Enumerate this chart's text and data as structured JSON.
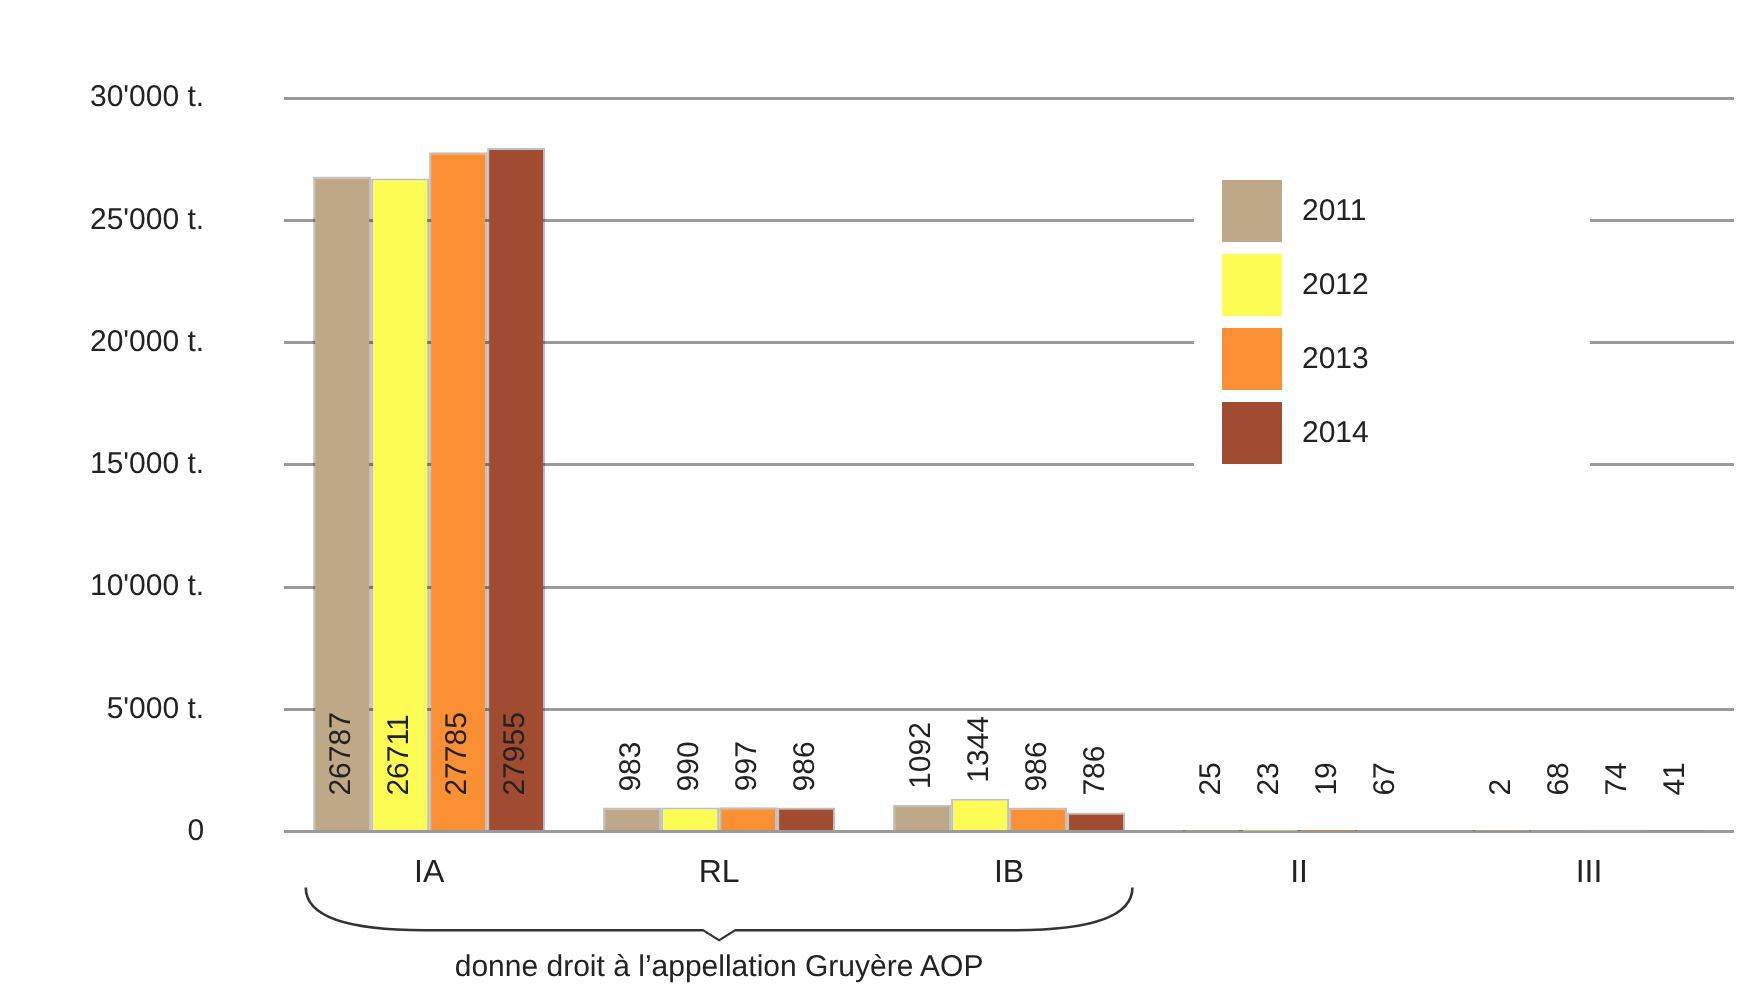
{
  "chart_data": {
    "type": "bar",
    "categories": [
      "IA",
      "RL",
      "IB",
      "II",
      "III"
    ],
    "series": [
      {
        "name": "2011",
        "color": "#bfa888",
        "values": [
          26787,
          983,
          1092,
          25,
          2
        ]
      },
      {
        "name": "2012",
        "color": "#fcfc55",
        "values": [
          26711,
          990,
          1344,
          23,
          68
        ]
      },
      {
        "name": "2013",
        "color": "#fb8f33",
        "values": [
          27785,
          997,
          986,
          19,
          74
        ]
      },
      {
        "name": "2014",
        "color": "#a14b31",
        "values": [
          27955,
          986,
          786,
          67,
          41
        ]
      }
    ],
    "ylim": [
      0,
      30000
    ],
    "yticks": [
      {
        "value": 0,
        "label": "0"
      },
      {
        "value": 5000,
        "label": "5'000 t."
      },
      {
        "value": 10000,
        "label": "10'000 t."
      },
      {
        "value": 15000,
        "label": "15'000 t."
      },
      {
        "value": 20000,
        "label": "20'000 t."
      },
      {
        "value": 25000,
        "label": "25'000 t."
      },
      {
        "value": 30000,
        "label": "30'000 t."
      }
    ],
    "grid": "y",
    "legend": "top right",
    "data_labels": true,
    "annotations": [
      "donne droit à l’appellation Gruyère AOP"
    ]
  }
}
